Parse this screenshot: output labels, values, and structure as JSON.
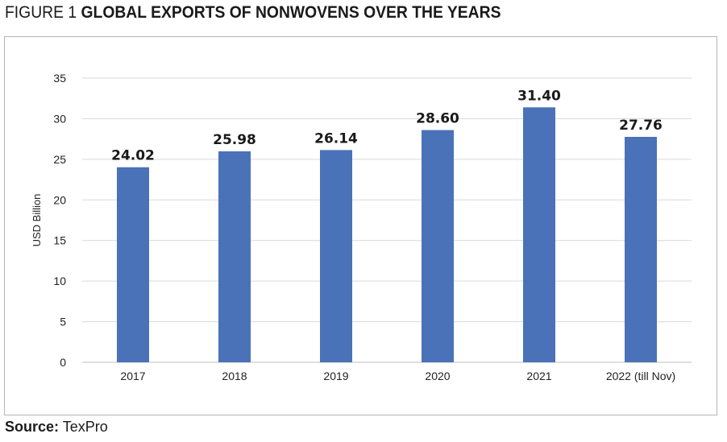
{
  "figure": {
    "prefix": "FIGURE 1",
    "title": "GLOBAL EXPORTS OF NONWOVENS OVER THE YEARS"
  },
  "source": {
    "label": "Source:",
    "value": "TexPro"
  },
  "colors": {
    "bar": "#4a72b8",
    "grid": "#d9d9d9",
    "axis": "#bfbfbf"
  },
  "chart_data": {
    "type": "bar",
    "categories": [
      "2017",
      "2018",
      "2019",
      "2020",
      "2021",
      "2022 (till Nov)"
    ],
    "values": [
      24.02,
      25.98,
      26.14,
      28.6,
      31.4,
      27.76
    ],
    "data_labels": [
      "24.02",
      "25.98",
      "26.14",
      "28.60",
      "31.40",
      "27.76"
    ],
    "ylabel": "USD Billion",
    "xlabel": "",
    "ylim": [
      0,
      35
    ],
    "yticks": [
      0,
      5,
      10,
      15,
      20,
      25,
      30,
      35
    ],
    "grid": true,
    "legend": "none"
  }
}
